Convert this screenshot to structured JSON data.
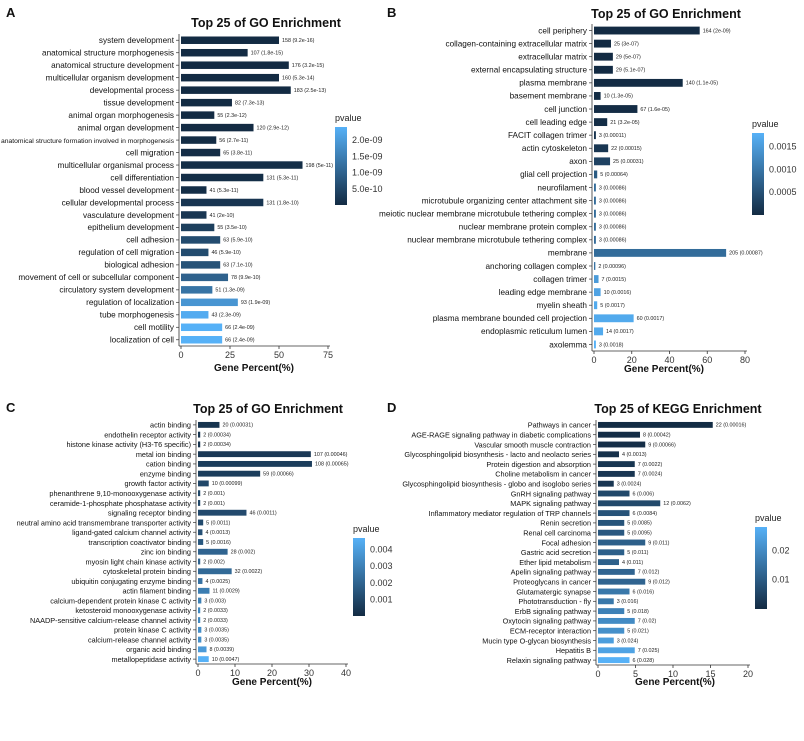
{
  "chart_data": [
    {
      "panel": "A",
      "type": "bar",
      "orientation": "horizontal",
      "title": "Top 25 of GO Enrichment",
      "xlabel": "Gene Percent(%)",
      "ylabel": "",
      "xlim": [
        0,
        75
      ],
      "xticks": [
        "0",
        "25",
        "50",
        "75"
      ],
      "legend": {
        "title": "pvalue",
        "ticks": [
          "2.0e-09",
          "1.5e-09",
          "1.0e-09",
          "5.0e-10"
        ],
        "placement": "right"
      },
      "categories": [
        "system development",
        "anatomical structure morphogenesis",
        "anatomical structure development",
        "multicellular organism development",
        "developmental process",
        "tissue development",
        "animal organ morphogenesis",
        "animal organ development",
        "anatomical structure formation involved in morphogenesis",
        "cell migration",
        "multicellular organismal process",
        "cell differentiation",
        "blood vessel development",
        "cellular developmental process",
        "vasculature development",
        "epithelium development",
        "cell adhesion",
        "regulation of cell migration",
        "biological adhesion",
        "movement of cell or subcellular component",
        "circulatory system development",
        "regulation of localization",
        "tube morphogenesis",
        "cell motility",
        "localization of cell"
      ],
      "values": [
        50,
        34,
        55,
        50,
        56,
        26,
        17,
        37,
        18,
        20,
        62,
        42,
        13,
        42,
        13,
        17,
        20,
        14,
        20,
        24,
        16,
        29,
        14,
        21,
        21
      ],
      "bar_labels": [
        "158 (9.2e-16)",
        "107 (1.8e-15)",
        "176 (3.2e-15)",
        "160 (5.3e-14)",
        "183 (2.5e-13)",
        "82 (7.3e-13)",
        "55 (2.3e-12)",
        "120 (2.9e-12)",
        "56 (2.7e-11)",
        "65 (3.8e-11)",
        "198 (5e-11)",
        "131 (5.3e-11)",
        "41 (5.3e-11)",
        "131 (1.8e-10)",
        "41 (2e-10)",
        "55 (3.5e-10)",
        "63 (5.9e-10)",
        "46 (5.9e-10)",
        "63 (7.1e-10)",
        "78 (9.9e-10)",
        "51 (1.3e-09)",
        "93 (1.9e-09)",
        "43 (2.3e-09)",
        "66 (2.4e-09)",
        "66 (2.4e-09)"
      ],
      "pvalues": [
        9.2e-16,
        1.8e-15,
        3.2e-15,
        5.3e-14,
        2.5e-13,
        7.3e-13,
        2.3e-12,
        2.9e-12,
        2.7e-11,
        3.8e-11,
        5e-11,
        5.3e-11,
        5.3e-11,
        1.8e-10,
        2e-10,
        3.5e-10,
        5.9e-10,
        5.9e-10,
        7.1e-10,
        9.9e-10,
        1.3e-09,
        1.9e-09,
        2.3e-09,
        2.4e-09,
        2.4e-09
      ],
      "pmax": 2.4e-09
    },
    {
      "panel": "B",
      "type": "bar",
      "orientation": "horizontal",
      "title": "Top 25 of GO Enrichment",
      "xlabel": "Gene Percent(%)",
      "ylabel": "",
      "xlim": [
        0,
        80
      ],
      "xticks": [
        "0",
        "20",
        "40",
        "60",
        "80"
      ],
      "legend": {
        "title": "pvalue",
        "ticks": [
          "0.0015",
          "0.0010",
          "0.0005"
        ],
        "placement": "right"
      },
      "categories": [
        "cell periphery",
        "collagen-containing extracellular matrix",
        "extracellular matrix",
        "external encapsulating structure",
        "plasma membrane",
        "basement membrane",
        "cell junction",
        "cell leading edge",
        "FACIT collagen trimer",
        "actin cytoskeleton",
        "axon",
        "glial cell projection",
        "neurofilament",
        "microtubule organizing center attachment site",
        "meiotic nuclear membrane microtubule tethering complex",
        "nuclear membrane protein complex",
        "nuclear membrane microtubule tethering complex",
        "membrane",
        "anchoring collagen complex",
        "collagen trimer",
        "leading edge membrane",
        "myelin sheath",
        "plasma membrane bounded cell projection",
        "endoplasmic reticulum lumen",
        "axolemma"
      ],
      "values": [
        56,
        9,
        10,
        10,
        47,
        3.5,
        23,
        7,
        1,
        7.5,
        8.5,
        1.7,
        1,
        1,
        1,
        1,
        1,
        70,
        0.7,
        2.4,
        3.5,
        1.7,
        21,
        4.8,
        1
      ],
      "bar_labels": [
        "164 (2e-09)",
        "25 (3e-07)",
        "29 (5e-07)",
        "29 (5.1e-07)",
        "140 (1.1e-05)",
        "10 (1.3e-05)",
        "67 (1.6e-05)",
        "21 (3.2e-05)",
        "3 (0.00011)",
        "22 (0.00015)",
        "25 (0.00031)",
        "5 (0.00064)",
        "3 (0.00086)",
        "3 (0.00086)",
        "3 (0.00086)",
        "3 (0.00086)",
        "3 (0.00086)",
        "205 (0.00087)",
        "2 (0.00096)",
        "7 (0.0015)",
        "10 (0.0016)",
        "5 (0.0017)",
        "60 (0.0017)",
        "14 (0.0017)",
        "3 (0.0018)"
      ],
      "pvalues": [
        2e-09,
        3e-07,
        5e-07,
        5.1e-07,
        1.1e-05,
        1.3e-05,
        1.6e-05,
        3.2e-05,
        0.00011,
        0.00015,
        0.00031,
        0.00064,
        0.00086,
        0.00086,
        0.00086,
        0.00086,
        0.00086,
        0.00087,
        0.00096,
        0.0015,
        0.0016,
        0.0017,
        0.0017,
        0.0017,
        0.0018
      ],
      "pmax": 0.0018
    },
    {
      "panel": "C",
      "type": "bar",
      "orientation": "horizontal",
      "title": "Top 25 of GO Enrichment",
      "xlabel": "Gene Percent(%)",
      "ylabel": "",
      "xlim": [
        0,
        40
      ],
      "xticks": [
        "0",
        "10",
        "20",
        "30",
        "40"
      ],
      "legend": {
        "title": "pvalue",
        "ticks": [
          "0.004",
          "0.003",
          "0.002",
          "0.001"
        ],
        "placement": "right"
      },
      "categories": [
        "actin binding",
        "endothelin receptor activity",
        "histone kinase activity (H3-T6 specific)",
        "metal ion binding",
        "cation binding",
        "enzyme binding",
        "growth factor activity",
        "phenanthrene 9,10-monooxygenase activity",
        "ceramide-1-phosphate phosphatase activity",
        "signaling receptor binding",
        "neutral amino acid transmembrane transporter activity",
        "ligand-gated calcium channel activity",
        "transcription coactivator binding",
        "zinc ion binding",
        "myosin light chain kinase activity",
        "cytoskeletal protein binding",
        "ubiquitin conjugating enzyme binding",
        "actin filament binding",
        "calcium-dependent protein kinase C activity",
        "ketosteroid monooxygenase activity",
        "NAADP-sensitive calcium-release channel activity",
        "protein kinase C activity",
        "calcium-release channel activity",
        "organic acid binding",
        "metallopeptidase activity"
      ],
      "values": [
        5.8,
        0.6,
        0.6,
        30.5,
        30.8,
        16.8,
        2.9,
        0.6,
        0.6,
        13.1,
        1.4,
        1.2,
        1.4,
        8,
        0.6,
        9.1,
        1.2,
        3.1,
        0.9,
        0.6,
        0.6,
        0.9,
        0.9,
        2.3,
        2.9
      ],
      "bar_labels": [
        "20 (0.00031)",
        "2 (0.00034)",
        "2 (0.00034)",
        "107 (0.00046)",
        "108 (0.00065)",
        "59 (0.00066)",
        "10 (0.00099)",
        "2 (0.001)",
        "2 (0.001)",
        "46 (0.0011)",
        "5 (0.0011)",
        "4 (0.0013)",
        "5 (0.0016)",
        "28 (0.002)",
        "2 (0.002)",
        "32 (0.0022)",
        "4 (0.0025)",
        "11 (0.0029)",
        "3 (0.003)",
        "2 (0.0033)",
        "2 (0.0033)",
        "3 (0.0035)",
        "3 (0.0035)",
        "8 (0.0039)",
        "10 (0.0047)"
      ],
      "pvalues": [
        0.00031,
        0.00034,
        0.00034,
        0.00046,
        0.00065,
        0.00066,
        0.00099,
        0.001,
        0.001,
        0.0011,
        0.0011,
        0.0013,
        0.0016,
        0.002,
        0.002,
        0.0022,
        0.0025,
        0.0029,
        0.003,
        0.0033,
        0.0033,
        0.0035,
        0.0035,
        0.0039,
        0.0047
      ],
      "pmax": 0.0047
    },
    {
      "panel": "D",
      "type": "bar",
      "orientation": "horizontal",
      "title": "Top 25 of KEGG Enrichment",
      "xlabel": "Gene Percent(%)",
      "ylabel": "",
      "xlim": [
        0,
        20
      ],
      "xticks": [
        "0",
        "5",
        "10",
        "15",
        "20"
      ],
      "legend": {
        "title": "pvalue",
        "ticks": [
          "0.02",
          "0.01"
        ],
        "placement": "right"
      },
      "categories": [
        "Pathways in cancer",
        "AGE-RAGE signaling pathway in diabetic complications",
        "Vascular smooth muscle contraction",
        "Glycosphingolipid biosynthesis - lacto and neolacto series",
        "Protein digestion and absorption",
        "Choline metabolism in cancer",
        "Glycosphingolipid biosynthesis - globo and isoglobo series",
        "GnRH signaling pathway",
        "MAPK signaling pathway",
        "Inflammatory mediator regulation of TRP channels",
        "Renin secretion",
        "Renal cell carcinoma",
        "Focal adhesion",
        "Gastric acid secretion",
        "Ether lipid metabolism",
        "Apelin signaling pathway",
        "Proteoglycans in cancer",
        "Glutamatergic synapse",
        "Phototransduction - fly",
        "ErbB signaling pathway",
        "Oxytocin signaling pathway",
        "ECM-receptor interaction",
        "Mucin type O-glycan biosynthesis",
        "Hepatitis B",
        "Relaxin signaling pathway"
      ],
      "values": [
        15.3,
        5.6,
        6.3,
        2.8,
        4.9,
        4.9,
        2.1,
        4.2,
        8.3,
        4.2,
        3.5,
        3.5,
        6.3,
        3.5,
        2.8,
        4.9,
        6.3,
        4.2,
        2.1,
        3.5,
        4.9,
        3.5,
        2.1,
        4.9,
        4.2
      ],
      "bar_labels": [
        "22 (0.00016)",
        "8 (0.00042)",
        "9 (0.00066)",
        "4 (0.0013)",
        "7 (0.0022)",
        "7 (0.0024)",
        "3 (0.0024)",
        "6 (0.006)",
        "12 (0.0062)",
        "6 (0.0084)",
        "5 (0.0085)",
        "5 (0.0095)",
        "9 (0.011)",
        "5 (0.011)",
        "4 (0.011)",
        "7 (0.012)",
        "9 (0.012)",
        "6 (0.016)",
        "3 (0.016)",
        "5 (0.018)",
        "7 (0.02)",
        "5 (0.021)",
        "3 (0.024)",
        "7 (0.025)",
        "6 (0.028)"
      ],
      "pvalues": [
        0.00016,
        0.00042,
        0.00066,
        0.0013,
        0.0022,
        0.0024,
        0.0024,
        0.006,
        0.0062,
        0.0084,
        0.0085,
        0.0095,
        0.011,
        0.011,
        0.011,
        0.012,
        0.012,
        0.016,
        0.016,
        0.018,
        0.02,
        0.021,
        0.024,
        0.025,
        0.028
      ],
      "pmax": 0.028
    }
  ],
  "colors": {
    "low_p": "#132b43",
    "high_p": "#56b1f7",
    "axis": "#333333",
    "text": "#111111"
  }
}
